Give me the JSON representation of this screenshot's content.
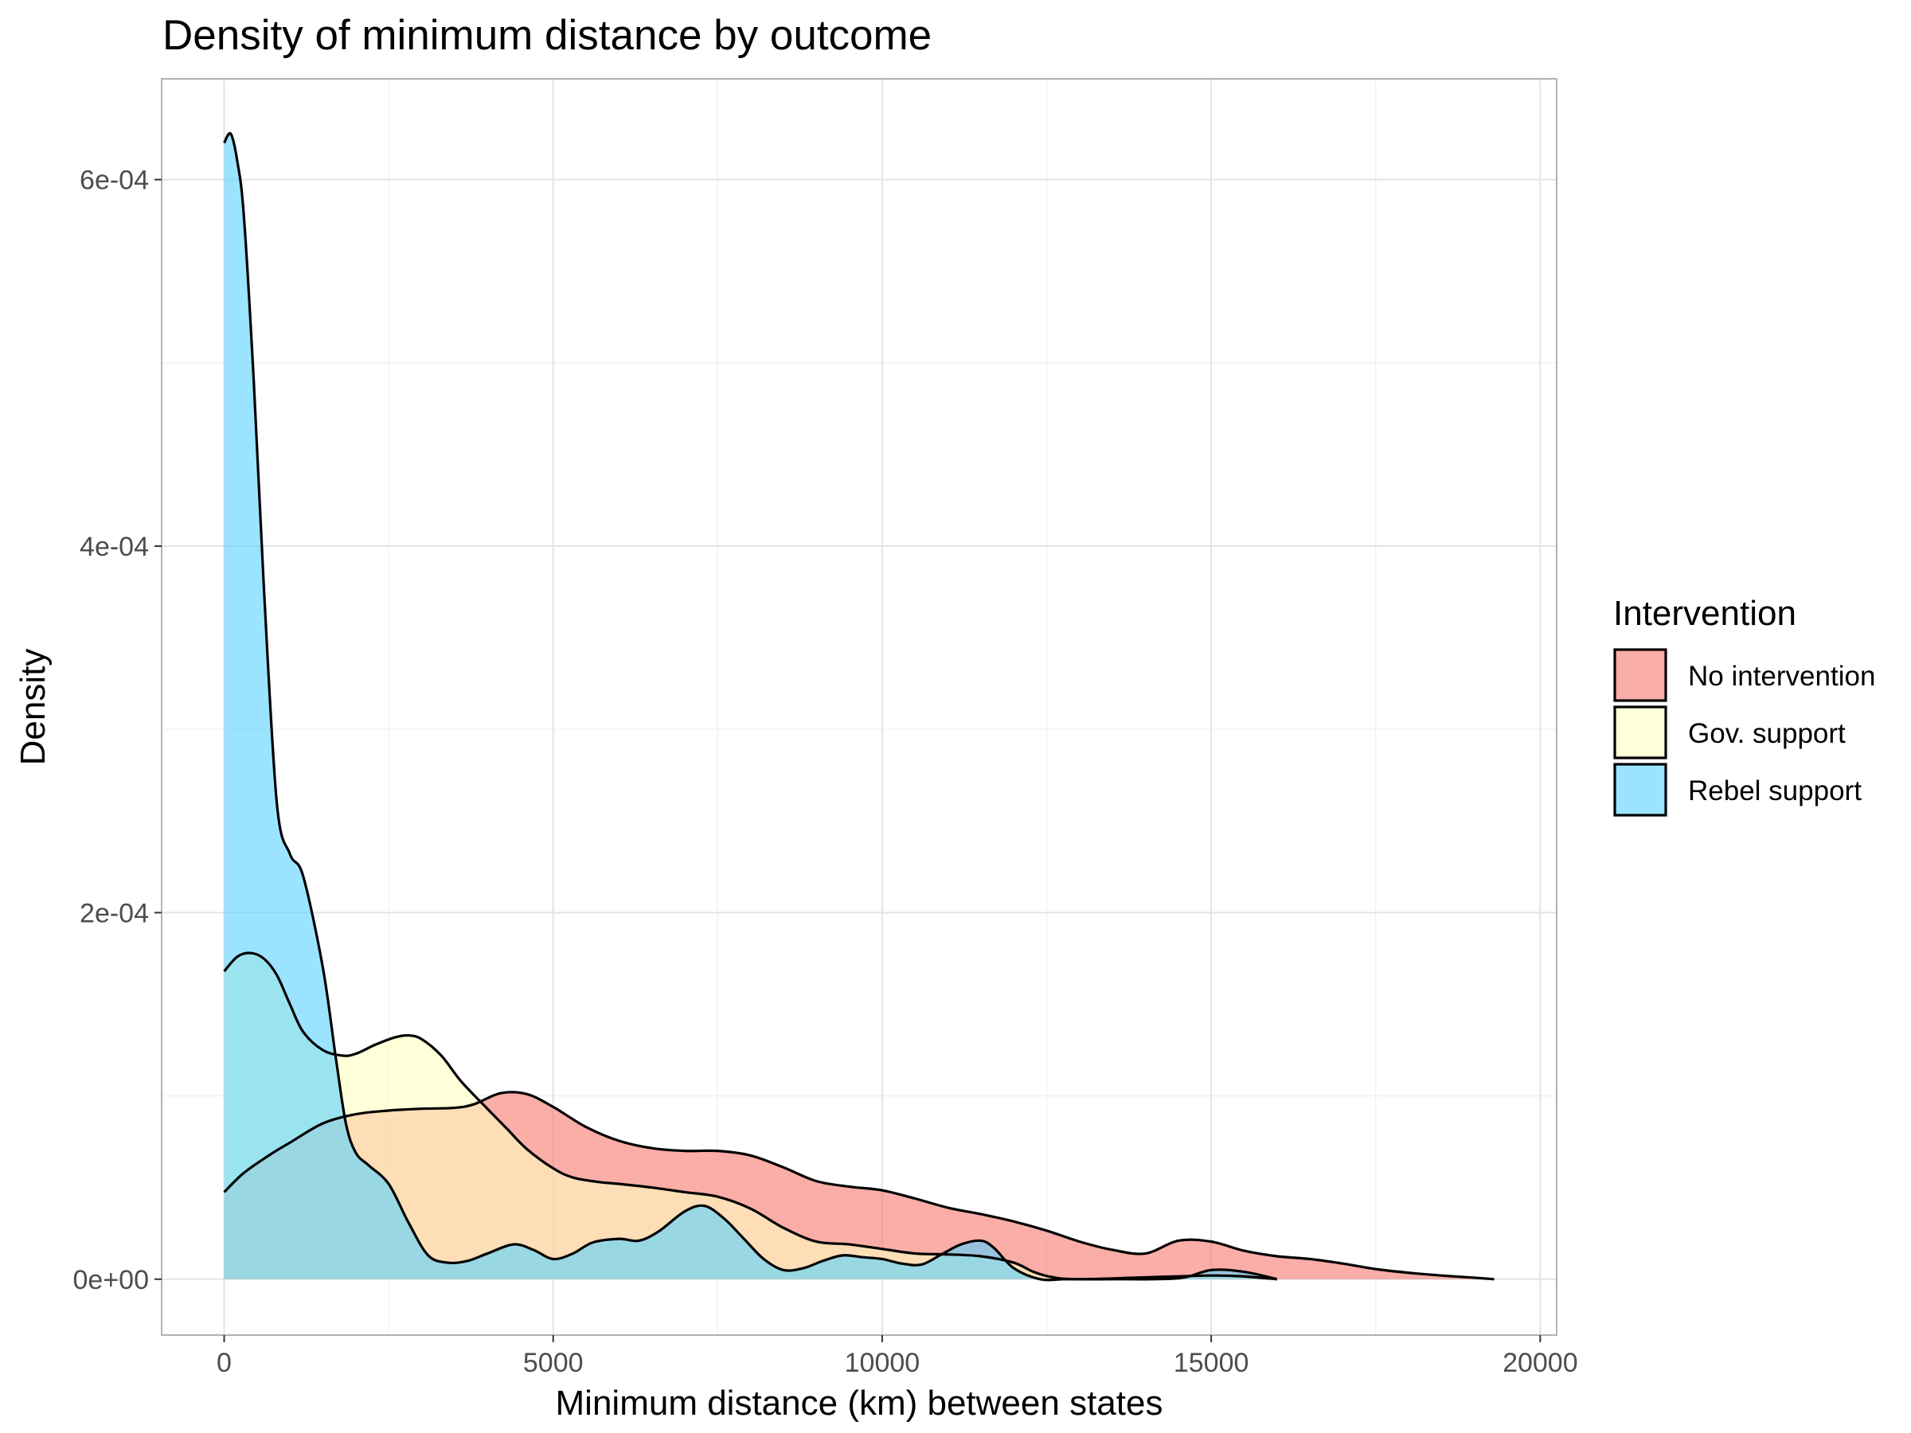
{
  "chart_data": {
    "type": "area",
    "title": "Density of minimum distance by outcome",
    "xlabel": "Minimum distance (km) between states",
    "ylabel": "Density",
    "xlim": [
      -950,
      20250
    ],
    "ylim": [
      -3.05e-05,
      0.000655
    ],
    "x_ticks": [
      0,
      5000,
      10000,
      15000,
      20000
    ],
    "x_tick_labels": [
      "0",
      "5000",
      "10000",
      "15000",
      "20000"
    ],
    "y_ticks": [
      0,
      0.0002,
      0.0004,
      0.0006
    ],
    "y_tick_labels": [
      "0e+00",
      "2e-04",
      "4e-04",
      "6e-04"
    ],
    "grid": true,
    "legend": {
      "title": "Intervention",
      "position": "right"
    },
    "series": [
      {
        "name": "No intervention",
        "color": "#F8766D",
        "x": [
          0,
          300,
          700,
          1000,
          1500,
          2000,
          2500,
          3000,
          3500,
          3800,
          4200,
          4600,
          5000,
          5500,
          6000,
          6500,
          7000,
          7500,
          8000,
          8500,
          9000,
          9500,
          10000,
          10500,
          11000,
          11500,
          12000,
          12500,
          13000,
          13500,
          14000,
          14500,
          15000,
          15500,
          16000,
          16500,
          17000,
          17500,
          18000,
          18500,
          19000,
          19300
        ],
        "y": [
          4.75e-05,
          5.8e-05,
          6.8e-05,
          7.45e-05,
          8.5e-05,
          9e-05,
          9.2e-05,
          9.3e-05,
          9.35e-05,
          9.55e-05,
          0.0001015,
          0.000101,
          9.4e-05,
          8.3e-05,
          7.55e-05,
          7.15e-05,
          7e-05,
          7e-05,
          6.75e-05,
          6.1e-05,
          5.35e-05,
          5.05e-05,
          4.85e-05,
          4.4e-05,
          3.9e-05,
          3.55e-05,
          3.15e-05,
          2.65e-05,
          2.05e-05,
          1.6e-05,
          1.4e-05,
          2.1e-05,
          2.05e-05,
          1.55e-05,
          1.25e-05,
          1.1e-05,
          8.5e-06,
          5.5e-06,
          3.5e-06,
          2e-06,
          8e-07,
          0
        ]
      },
      {
        "name": "Gov. support",
        "color": "#FFFFBF",
        "x": [
          0,
          200,
          400,
          600,
          800,
          1000,
          1200,
          1500,
          1800,
          2000,
          2300,
          2600,
          2800,
          3000,
          3300,
          3600,
          4000,
          4300,
          4600,
          5000,
          5300,
          5700,
          6000,
          6500,
          7000,
          7500,
          8000,
          8500,
          9000,
          9500,
          10000,
          10500,
          11000,
          11500,
          12000,
          12300,
          12600,
          13000,
          14000,
          15000,
          15500,
          16000
        ],
        "y": [
          0.000168,
          0.000176,
          0.000178,
          0.000175,
          0.000166,
          0.00015,
          0.000135,
          0.000125,
          0.000122,
          0.000123,
          0.000128,
          0.000132,
          0.000133,
          0.000131,
          0.000122,
          0.000108,
          9.3e-05,
          8.2e-05,
          7.1e-05,
          6.05e-05,
          5.55e-05,
          5.3e-05,
          5.2e-05,
          5e-05,
          4.75e-05,
          4.5e-05,
          3.85e-05,
          2.8e-05,
          2.05e-05,
          1.9e-05,
          1.65e-05,
          1.4e-05,
          1.35e-05,
          1.25e-05,
          9e-06,
          4e-06,
          1e-06,
          0,
          1e-06,
          2e-06,
          1.5e-06,
          0
        ]
      },
      {
        "name": "Rebel support",
        "color": "#56D2FF",
        "x": [
          0,
          100,
          200,
          300,
          450,
          600,
          800,
          1000,
          1200,
          1500,
          1700,
          1850,
          2000,
          2200,
          2500,
          2800,
          3100,
          3400,
          3700,
          4000,
          4400,
          4700,
          5000,
          5300,
          5600,
          6000,
          6300,
          6600,
          7000,
          7300,
          7600,
          7900,
          8200,
          8500,
          8800,
          9100,
          9400,
          9700,
          10000,
          10300,
          10600,
          10900,
          11200,
          11500,
          11700,
          12000,
          12400,
          12800,
          13500,
          14500,
          15000,
          15500,
          16000
        ],
        "y": [
          0.00062,
          0.000625,
          0.00061,
          0.00058,
          0.00049,
          0.00038,
          0.00026,
          0.000232,
          0.00022,
          0.00017,
          0.00012,
          8.5e-05,
          6.9e-05,
          6.2e-05,
          5.2e-05,
          3.1e-05,
          1.3e-05,
          9e-06,
          1e-05,
          1.4e-05,
          1.9e-05,
          1.6e-05,
          1.1e-05,
          1.4e-05,
          2e-05,
          2.2e-05,
          2.1e-05,
          2.6e-05,
          3.7e-05,
          4e-05,
          3.3e-05,
          2.2e-05,
          1.1e-05,
          5e-06,
          6e-06,
          1e-05,
          1.3e-05,
          1.2e-05,
          1.1e-05,
          8.5e-06,
          8e-06,
          1.35e-05,
          1.9e-05,
          2.1e-05,
          1.7e-05,
          6e-06,
          0,
          0,
          0,
          5e-07,
          5e-06,
          4e-06,
          0
        ]
      }
    ]
  }
}
